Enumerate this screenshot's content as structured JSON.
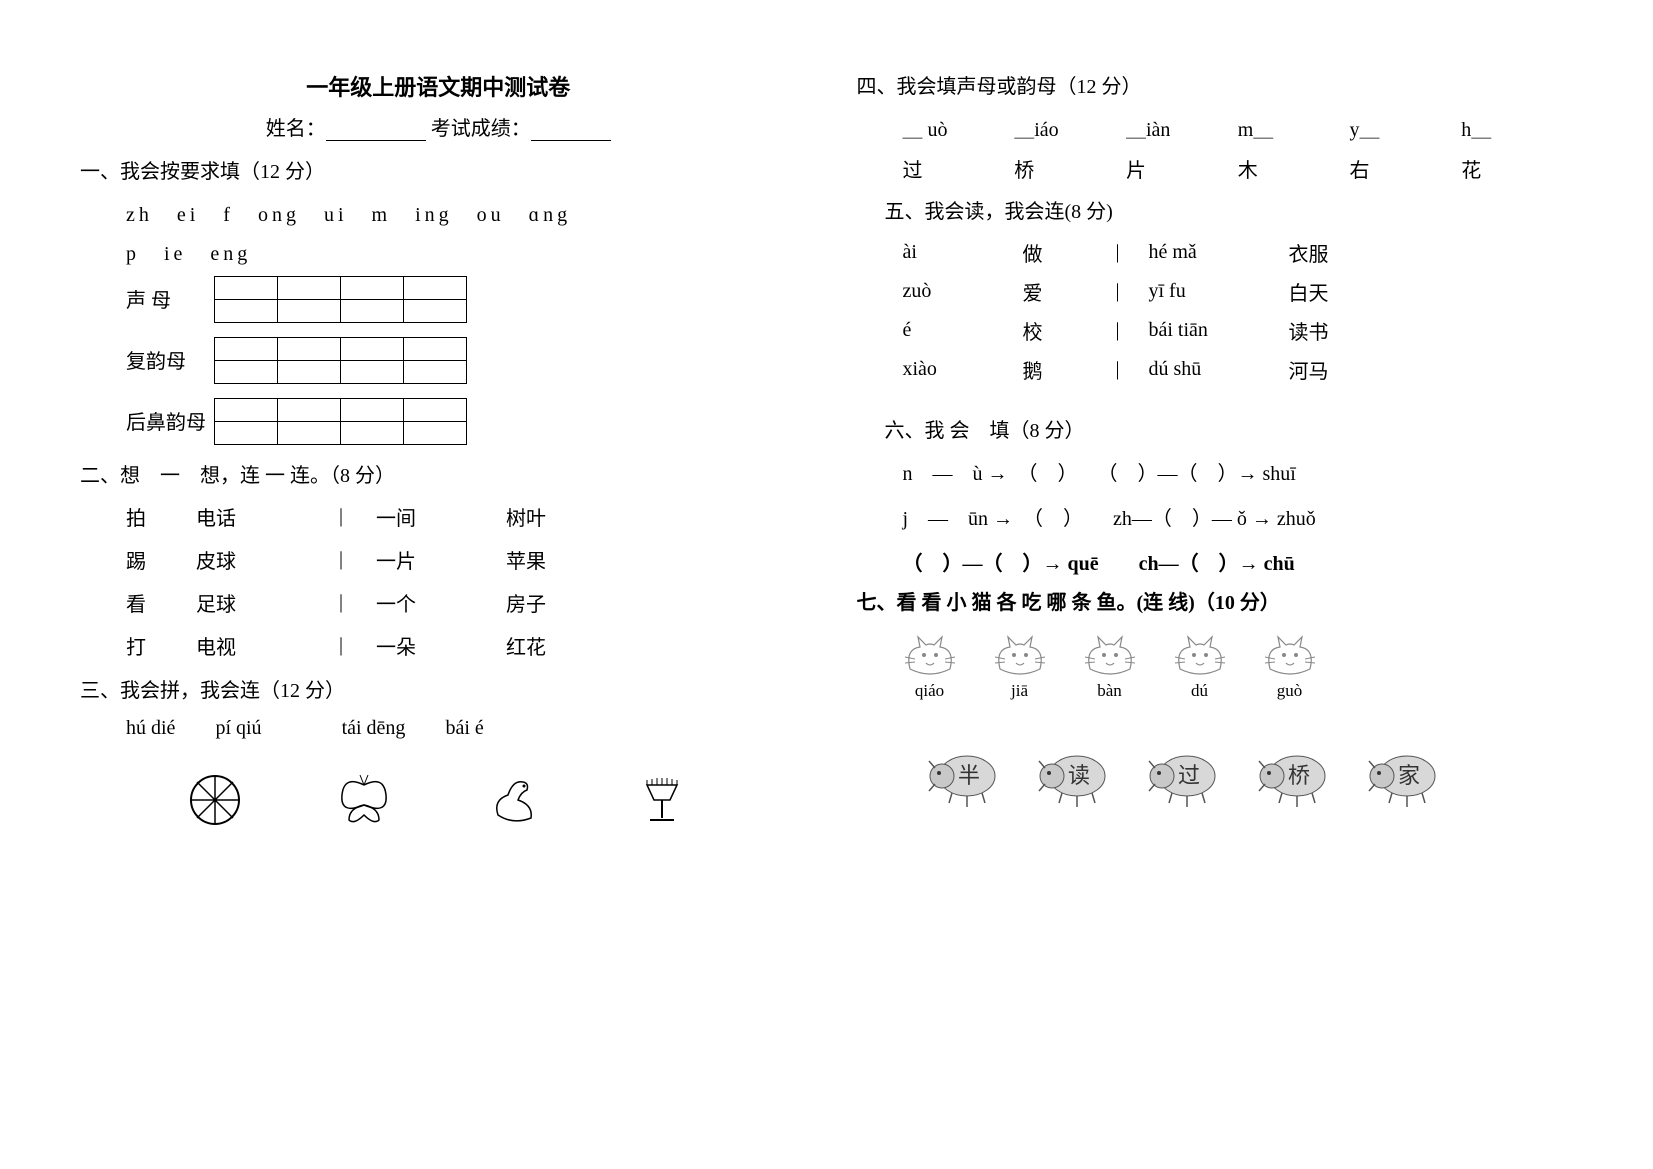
{
  "title": "一年级上册语文期中测试卷",
  "name_label": "姓名：",
  "score_label": "考试成绩：",
  "q1": {
    "heading": "一、我会按要求填（12 分）",
    "line1": "zh　ei　f　ong　ui　m　ing　ou　ɑng",
    "line2": "p　ie　eng",
    "labels": [
      "声 母",
      "复韵母",
      "后鼻韵母"
    ]
  },
  "q2": {
    "heading": "二、想　一　想，连 一 连。（8 分）",
    "rows": [
      [
        "拍",
        "电话",
        "一间",
        "树叶"
      ],
      [
        "踢",
        "皮球",
        "一片",
        "苹果"
      ],
      [
        "看",
        "足球",
        "一个",
        "房子"
      ],
      [
        "打",
        "电视",
        "一朵",
        "红花"
      ]
    ]
  },
  "q3": {
    "heading": "三、我会拼，我会连（12 分）",
    "items": [
      "hú dié",
      "pí qiú",
      "tái dēng",
      "bái é"
    ]
  },
  "q4": {
    "heading": "四、我会填声母或韵母（12 分）",
    "row1": [
      "＿ uò",
      "＿iáo",
      "＿iàn",
      "m＿",
      "y＿",
      "h＿"
    ],
    "row2": [
      "过",
      "桥",
      "片",
      "木",
      "右",
      "花"
    ]
  },
  "q5": {
    "heading": "五、我会读，我会连(8 分)",
    "rows": [
      [
        "ài",
        "做",
        "hé mǎ",
        "衣服"
      ],
      [
        "zuò",
        "爱",
        "yī fu",
        "白天"
      ],
      [
        "é",
        "校",
        "bái tiān",
        "读书"
      ],
      [
        "xiào",
        "鹅",
        "dú shū",
        "河马"
      ]
    ]
  },
  "q6": {
    "heading": "六、我 会　填（8 分）",
    "lines": [
      "n　—　ù  →　（　）　　（　）—（　）→ shuī",
      "j　—　ūn →　（　）　　zh—（　）— ǒ → zhuǒ",
      "（　）—（　）→ quē　　ch—（　）→ chū"
    ]
  },
  "q7": {
    "heading": "七、看 看 小 猫 各 吃 哪 条 鱼。(连 线)（10 分）",
    "cats": [
      "qiáo",
      "jiā",
      "bàn",
      "dú",
      "guò"
    ],
    "bugs": [
      "半",
      "读",
      "过",
      "桥",
      "家"
    ]
  },
  "colors": {
    "text": "#000000",
    "bg": "#ffffff"
  }
}
